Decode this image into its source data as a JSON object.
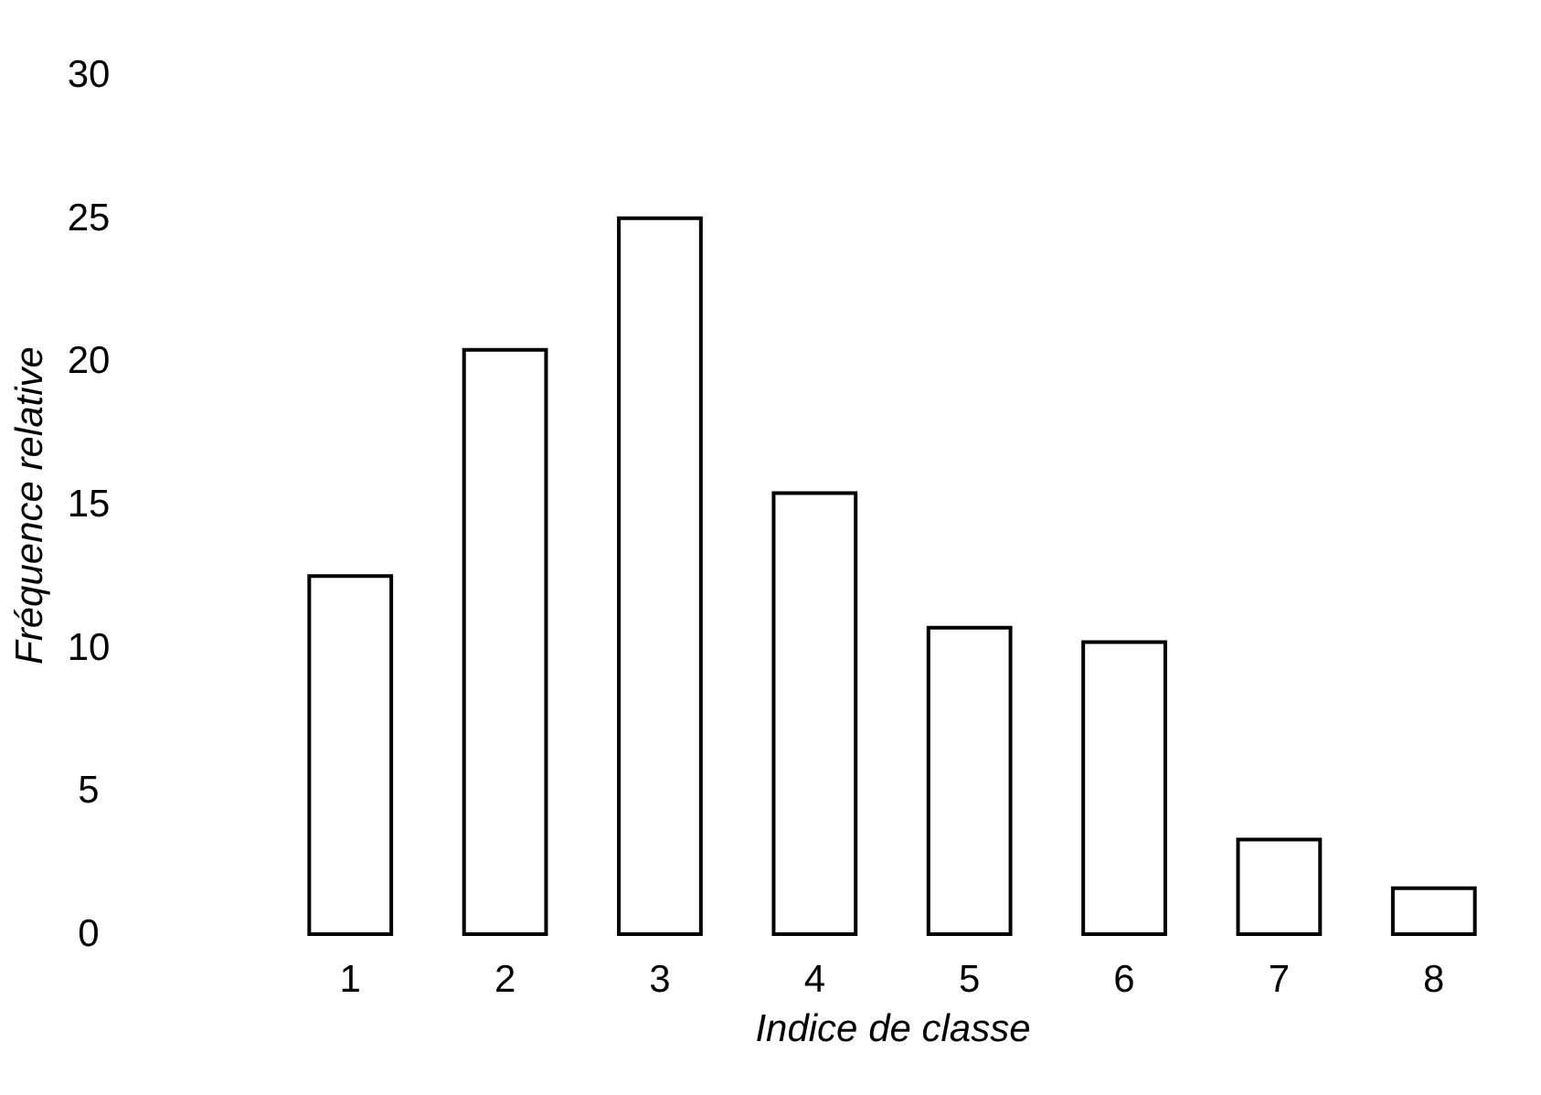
{
  "chart_data": {
    "type": "bar",
    "xlabel": "Indice de classe",
    "ylabel": "Fréquence relative",
    "categories": [
      "1",
      "2",
      "3",
      "4",
      "5",
      "6",
      "7",
      "8"
    ],
    "values": [
      12.5,
      20.4,
      25.0,
      15.4,
      10.7,
      10.2,
      3.3,
      1.6
    ],
    "color": "#ffffff",
    "ylim": [
      0,
      30
    ],
    "yticks": [
      0,
      5,
      10,
      15,
      20,
      25,
      30
    ],
    "grid": false
  }
}
